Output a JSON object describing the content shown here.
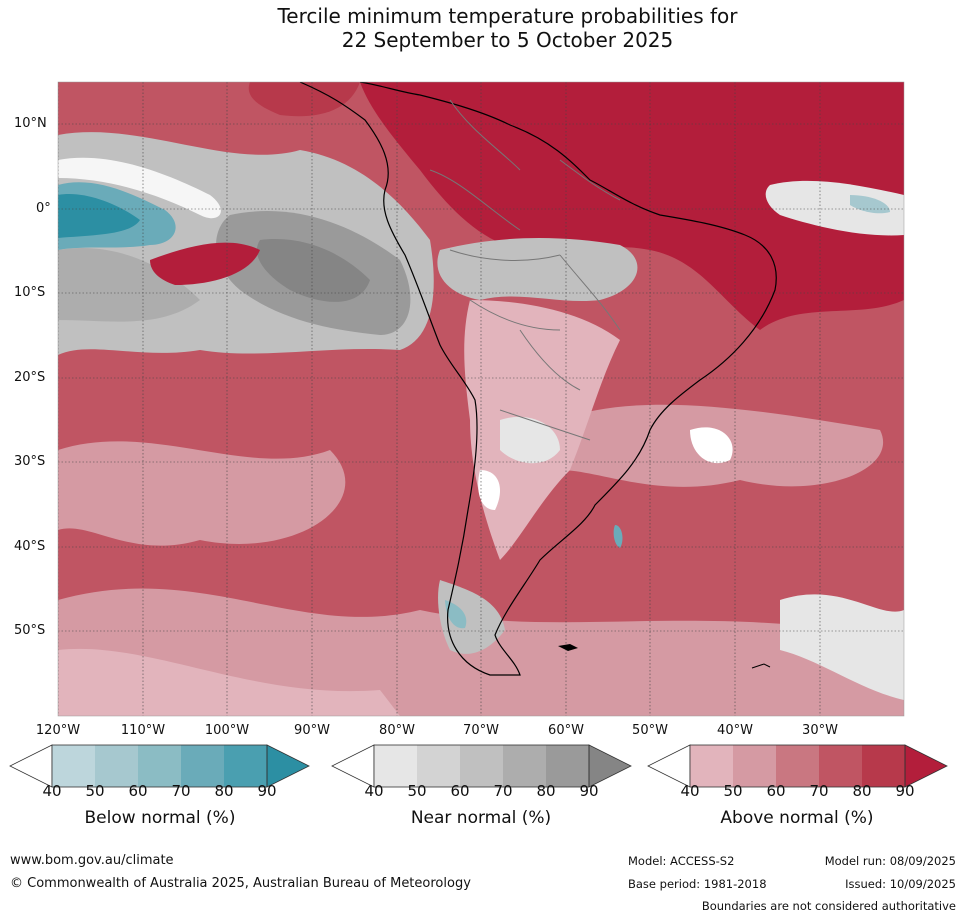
{
  "title": {
    "line1": "Tercile minimum temperature probabilities for",
    "line2": "22 September to 5 October 2025"
  },
  "map": {
    "region": "South America and surrounding oceans",
    "lon_range": [
      -120,
      -20
    ],
    "lat_range": [
      -60,
      15
    ],
    "lat_labels": [
      "10°N",
      "0°",
      "10°S",
      "20°S",
      "30°S",
      "40°S",
      "50°S"
    ],
    "lon_labels": [
      "120°W",
      "110°W",
      "100°W",
      "90°W",
      "80°W",
      "70°W",
      "60°W",
      "50°W",
      "40°W",
      "30°W"
    ],
    "gridlines": true,
    "dominant_category": "above-normal"
  },
  "legends": [
    {
      "title": "Below normal (%)",
      "ticks": [
        "40",
        "50",
        "60",
        "70",
        "80",
        "90"
      ],
      "colors": [
        "#ffffff",
        "#bdd6dc",
        "#a6c8cf",
        "#8bbcc4",
        "#6aabb9",
        "#4a9fb0",
        "#2c8fa3"
      ]
    },
    {
      "title": "Near normal (%)",
      "ticks": [
        "40",
        "50",
        "60",
        "70",
        "80",
        "90"
      ],
      "colors": [
        "#ffffff",
        "#e6e6e6",
        "#d3d3d3",
        "#c0c0c0",
        "#adadad",
        "#9a9a9a",
        "#858585"
      ]
    },
    {
      "title": "Above normal (%)",
      "ticks": [
        "40",
        "50",
        "60",
        "70",
        "80",
        "90"
      ],
      "colors": [
        "#ffffff",
        "#e2b4bc",
        "#d59aa3",
        "#c97781",
        "#c05563",
        "#b7394b",
        "#b31e3b"
      ]
    }
  ],
  "footer": {
    "website": "www.bom.gov.au/climate",
    "copyright": "© Commonwealth of Australia 2025, Australian Bureau of Meteorology",
    "model": "Model: ACCESS-S2",
    "base_period": "Base period: 1981-2018",
    "model_run": "Model run: 08/09/2025",
    "issued": "Issued: 10/09/2025",
    "disclaimer": "Boundaries are not considered authoritative"
  }
}
